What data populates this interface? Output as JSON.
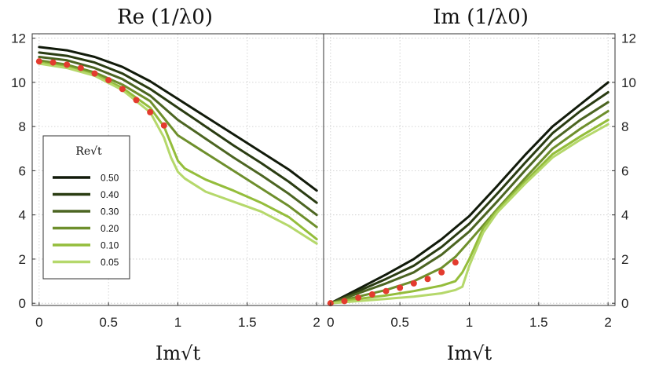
{
  "chart_data": [
    {
      "type": "line",
      "title": "Re (1/λ0)",
      "xlabel": "Im√t",
      "xlim": [
        -0.05,
        2.05
      ],
      "ylim": [
        -0.1,
        12.2
      ],
      "xticks": [
        "0",
        "0.5",
        "1",
        "1.5",
        "2"
      ],
      "yticks": [
        "0",
        "2",
        "4",
        "6",
        "8",
        "10",
        "12"
      ],
      "grid": true,
      "series": [
        {
          "name": "0.50",
          "color": "#111a0a",
          "x": [
            0,
            0.2,
            0.4,
            0.6,
            0.8,
            1.0,
            1.2,
            1.4,
            1.6,
            1.8,
            2.0
          ],
          "y": [
            11.6,
            11.45,
            11.15,
            10.7,
            10.05,
            9.25,
            8.45,
            7.65,
            6.85,
            6.05,
            5.1
          ]
        },
        {
          "name": "0.40",
          "color": "#2a3c12",
          "x": [
            0,
            0.2,
            0.4,
            0.6,
            0.8,
            1.0,
            1.2,
            1.4,
            1.6,
            1.8,
            2.0
          ],
          "y": [
            11.35,
            11.2,
            10.9,
            10.4,
            9.7,
            8.85,
            8.0,
            7.15,
            6.35,
            5.5,
            4.55
          ]
        },
        {
          "name": "0.30",
          "color": "#4c6522",
          "x": [
            0,
            0.2,
            0.4,
            0.6,
            0.8,
            1.0,
            1.2,
            1.4,
            1.6,
            1.8,
            2.0
          ],
          "y": [
            11.15,
            11.0,
            10.65,
            10.15,
            9.4,
            8.3,
            7.45,
            6.6,
            5.8,
            4.95,
            4.0
          ]
        },
        {
          "name": "0.20",
          "color": "#6e8f2c",
          "x": [
            0,
            0.2,
            0.4,
            0.6,
            0.8,
            1.0,
            1.2,
            1.4,
            1.6,
            1.8,
            2.0
          ],
          "y": [
            11.0,
            10.8,
            10.45,
            9.9,
            9.15,
            7.6,
            6.8,
            6.0,
            5.2,
            4.4,
            3.45
          ]
        },
        {
          "name": "0.10",
          "color": "#94bd3b",
          "x": [
            0,
            0.2,
            0.4,
            0.6,
            0.8,
            0.9,
            1.0,
            1.05,
            1.2,
            1.4,
            1.6,
            1.8,
            2.0
          ],
          "y": [
            10.9,
            10.7,
            10.35,
            9.75,
            8.85,
            8.0,
            6.45,
            6.1,
            5.6,
            5.1,
            4.55,
            3.9,
            2.9
          ]
        },
        {
          "name": "0.05",
          "color": "#b5d86b",
          "x": [
            0,
            0.2,
            0.4,
            0.6,
            0.8,
            0.9,
            0.95,
            1.0,
            1.05,
            1.2,
            1.4,
            1.6,
            1.8,
            2.0
          ],
          "y": [
            10.85,
            10.65,
            10.3,
            9.65,
            8.65,
            7.5,
            6.6,
            5.95,
            5.65,
            5.05,
            4.6,
            4.15,
            3.5,
            2.7
          ]
        },
        {
          "name": "",
          "color": "#e33b2e",
          "style": "markers",
          "x": [
            0,
            0.1,
            0.2,
            0.3,
            0.4,
            0.5,
            0.6,
            0.7,
            0.8,
            0.9
          ],
          "y": [
            10.95,
            10.9,
            10.8,
            10.65,
            10.4,
            10.1,
            9.7,
            9.2,
            8.65,
            8.05
          ]
        }
      ],
      "legend": {
        "title": "Re√t",
        "position": "left"
      }
    },
    {
      "type": "line",
      "title": "Im (1/λ0)",
      "xlabel": "Im√t",
      "xlim": [
        -0.05,
        2.05
      ],
      "ylim": [
        -0.1,
        12.2
      ],
      "xticks": [
        "0",
        "0.5",
        "1",
        "1.5",
        "2"
      ],
      "yticks": [
        "0",
        "2",
        "4",
        "6",
        "8",
        "10",
        "12"
      ],
      "grid": true,
      "series": [
        {
          "name": "0.50",
          "color": "#111a0a",
          "x": [
            0,
            0.2,
            0.4,
            0.6,
            0.8,
            1.0,
            1.2,
            1.4,
            1.6,
            1.8,
            2.0
          ],
          "y": [
            0,
            0.65,
            1.3,
            2.0,
            2.9,
            3.95,
            5.3,
            6.7,
            8.0,
            9.0,
            10.0
          ]
        },
        {
          "name": "0.40",
          "color": "#2a3c12",
          "x": [
            0,
            0.2,
            0.4,
            0.6,
            0.8,
            1.0,
            1.2,
            1.4,
            1.6,
            1.8,
            2.0
          ],
          "y": [
            0,
            0.55,
            1.1,
            1.7,
            2.55,
            3.6,
            4.95,
            6.35,
            7.7,
            8.7,
            9.55
          ]
        },
        {
          "name": "0.30",
          "color": "#4c6522",
          "x": [
            0,
            0.2,
            0.4,
            0.6,
            0.8,
            1.0,
            1.2,
            1.4,
            1.6,
            1.8,
            2.0
          ],
          "y": [
            0,
            0.45,
            0.9,
            1.4,
            2.2,
            3.25,
            4.6,
            6.0,
            7.35,
            8.3,
            9.1
          ]
        },
        {
          "name": "0.20",
          "color": "#6e8f2c",
          "x": [
            0,
            0.2,
            0.4,
            0.6,
            0.8,
            0.9,
            1.0,
            1.2,
            1.4,
            1.6,
            1.8,
            2.0
          ],
          "y": [
            0,
            0.3,
            0.6,
            1.0,
            1.6,
            2.1,
            2.8,
            4.25,
            5.65,
            7.0,
            7.9,
            8.7
          ]
        },
        {
          "name": "0.10",
          "color": "#94bd3b",
          "x": [
            0,
            0.2,
            0.4,
            0.6,
            0.8,
            0.9,
            0.95,
            1.0,
            1.1,
            1.2,
            1.4,
            1.6,
            1.8,
            2.0
          ],
          "y": [
            0,
            0.2,
            0.35,
            0.55,
            0.8,
            1.0,
            1.4,
            2.0,
            3.4,
            4.2,
            5.5,
            6.75,
            7.55,
            8.3
          ]
        },
        {
          "name": "0.05",
          "color": "#b5d86b",
          "x": [
            0,
            0.2,
            0.4,
            0.6,
            0.8,
            0.9,
            0.95,
            1.0,
            1.1,
            1.2,
            1.4,
            1.6,
            1.8,
            2.0
          ],
          "y": [
            0,
            0.1,
            0.2,
            0.3,
            0.45,
            0.6,
            0.75,
            1.7,
            3.2,
            4.1,
            5.4,
            6.6,
            7.4,
            8.1
          ]
        },
        {
          "name": "",
          "color": "#e33b2e",
          "style": "markers",
          "x": [
            0,
            0.1,
            0.2,
            0.3,
            0.4,
            0.5,
            0.6,
            0.7,
            0.8,
            0.9
          ],
          "y": [
            0,
            0.1,
            0.25,
            0.4,
            0.55,
            0.7,
            0.9,
            1.1,
            1.4,
            1.85
          ]
        }
      ]
    }
  ]
}
